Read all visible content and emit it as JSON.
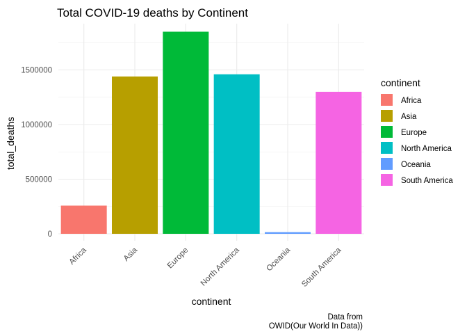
{
  "chart_data": {
    "type": "bar",
    "title": "Total COVID-19 deaths by Continent",
    "xlabel": "continent",
    "ylabel": "total_deaths",
    "categories": [
      "Africa",
      "Asia",
      "Europe",
      "North America",
      "Oceania",
      "South America"
    ],
    "values": [
      258000,
      1440000,
      1850000,
      1460000,
      15000,
      1300000
    ],
    "colors": [
      "#F8766D",
      "#B79F00",
      "#00BA38",
      "#00BFC4",
      "#619CFF",
      "#F564E3"
    ],
    "y_ticks": [
      0,
      500000,
      1000000,
      1500000
    ],
    "y_tick_labels": [
      "0",
      "500000",
      "1000000",
      "1500000"
    ],
    "ylim": [
      0,
      1850000
    ],
    "grid": true,
    "legend": {
      "title": "continent",
      "placement": "right",
      "entries": [
        "Africa",
        "Asia",
        "Europe",
        "North America",
        "Oceania",
        "South America"
      ]
    },
    "caption": [
      "Data from",
      "OWID(Our World In Data))"
    ]
  }
}
